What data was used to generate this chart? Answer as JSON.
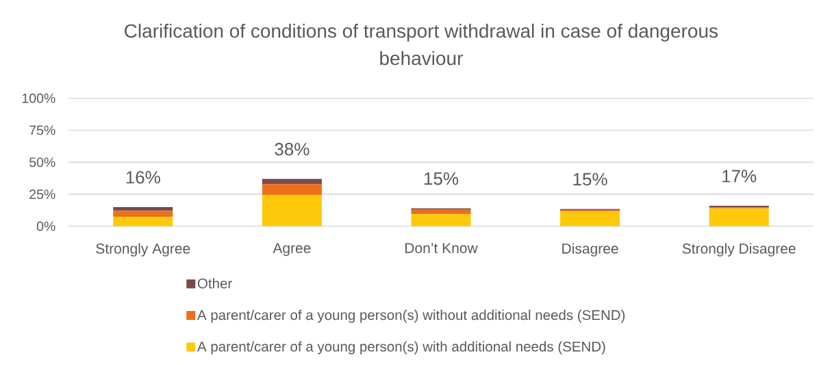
{
  "chart_data": {
    "type": "bar",
    "title": "Clarification of conditions of transport withdrawal in case of dangerous behaviour",
    "categories": [
      "Strongly Agree",
      "Agree",
      "Don’t Know",
      "Disagree",
      "Strongly Disagree"
    ],
    "stacked": true,
    "series": [
      {
        "name": "A parent/carer of a young person(s) with additional needs (SEND)",
        "color": "#ffc90b",
        "values": [
          7.5,
          24.5,
          9.5,
          11.5,
          14
        ]
      },
      {
        "name": "A parent/carer of a young person(s) without additional needs (SEND)",
        "color": "#ec6f1a",
        "values": [
          4.5,
          8.5,
          3.5,
          1,
          1
        ]
      },
      {
        "name": "Other",
        "color": "#7a4a4c",
        "values": [
          3,
          4,
          1,
          1,
          1
        ]
      }
    ],
    "ylim": [
      0,
      100
    ],
    "yticks": [
      {
        "value": 0,
        "label": "0%"
      },
      {
        "value": 25,
        "label": "25%"
      },
      {
        "value": 50,
        "label": "50%"
      },
      {
        "value": 75,
        "label": "75%"
      },
      {
        "value": 100,
        "label": "100%"
      }
    ],
    "grid": "y",
    "legend": "bottom",
    "totals": [
      "16%",
      "38%",
      "15%",
      "15%",
      "17%"
    ]
  }
}
